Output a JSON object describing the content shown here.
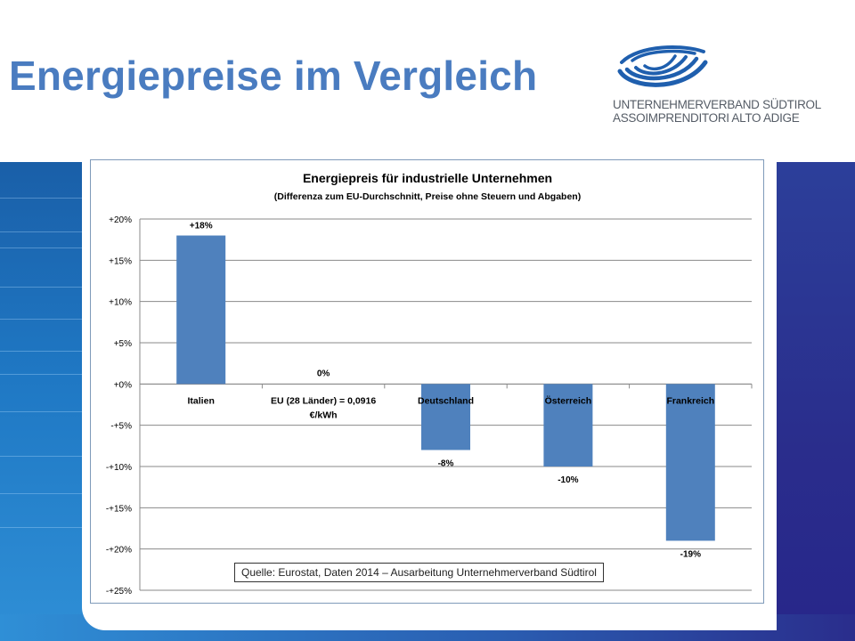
{
  "slide": {
    "title": "Energiepreise im Vergleich",
    "logo": {
      "line1": "UNTERNEHMERVERBAND SÜDTIROL",
      "line2": "ASSOIMPRENDITORI ALTO ADIGE",
      "color": "#1f5fae"
    },
    "source_note": "Quelle: Eurostat, Daten 2014 – Ausarbeitung Unternehmerverband Südtirol"
  },
  "chart_data": {
    "type": "bar",
    "title": "Energiepreis für industrielle Unternehmen",
    "subtitle": "(Differenza zum EU-Durchschnitt,  Preise ohne Steuern und Abgaben)",
    "categories": [
      "Italien",
      "EU (28 Länder) = 0,0916 €/kWh",
      "Deutschland",
      "Österreich",
      "Frankreich"
    ],
    "values": [
      18,
      0,
      -8,
      -10,
      -19
    ],
    "data_labels": [
      "+18%",
      "0%",
      "-8%",
      "-10%",
      "-19%"
    ],
    "y_ticks": [
      "+20%",
      "+15%",
      "+10%",
      "+5%",
      "+0%",
      "-+5%",
      "-+10%",
      "-+15%",
      "-+20%",
      "-+25%"
    ],
    "y_tick_values": [
      20,
      15,
      10,
      5,
      0,
      -5,
      -10,
      -15,
      -20,
      -25
    ],
    "ylim": [
      -25,
      20
    ],
    "grid": true,
    "bar_color": "#4f81bd",
    "xlabel": "",
    "ylabel": ""
  }
}
